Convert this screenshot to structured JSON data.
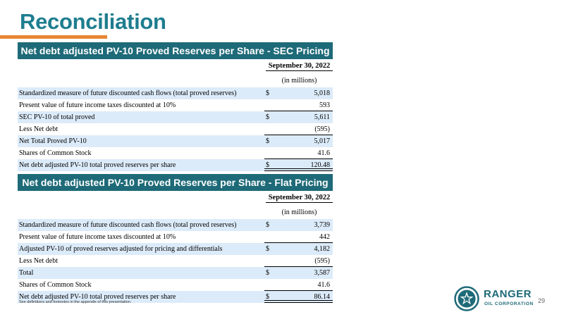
{
  "title": "Reconciliation",
  "sections": [
    {
      "header": "Net debt adjusted PV-10 Proved Reserves per Share - SEC Pricing",
      "date_label": "September 30, 2022",
      "units_label": "(in millions)",
      "rows": [
        {
          "label": "Standardized measure of future discounted cash flows (total proved reserves)",
          "dollar": "$",
          "value": "5,018"
        },
        {
          "label": "Present value of future income taxes discounted at 10%",
          "dollar": "",
          "value": "593"
        },
        {
          "label": "SEC PV-10 of total proved",
          "dollar": "$",
          "value": "5,611"
        },
        {
          "label": "Less Net debt",
          "dollar": "",
          "value": "(595)"
        },
        {
          "label": "Net Total Proved PV-10",
          "dollar": "$",
          "value": "5,017"
        },
        {
          "label": "Shares of Common Stock",
          "dollar": "",
          "value": "41.6"
        },
        {
          "label": "Net debt adjusted PV-10 total proved reserves per share",
          "dollar": "$",
          "value": "120.48"
        }
      ]
    },
    {
      "header": "Net debt adjusted PV-10 Proved Reserves per Share - Flat Pricing",
      "date_label": "September 30, 2022",
      "units_label": "(in millions)",
      "rows": [
        {
          "label": "Standardized measure of future discounted cash flows (total proved reserves)",
          "dollar": "$",
          "value": "3,739"
        },
        {
          "label": "Present value of future income taxes discounted at 10%",
          "dollar": "",
          "value": "442"
        },
        {
          "label": "Adjusted PV-10 of proved reserves adjusted for pricing and differentials",
          "dollar": "$",
          "value": "4,182"
        },
        {
          "label": "Less Net debt",
          "dollar": "",
          "value": "(595)"
        },
        {
          "label": "Total",
          "dollar": "$",
          "value": "3,587"
        },
        {
          "label": "Shares of Common Stock",
          "dollar": "",
          "value": "41.6"
        },
        {
          "label": "Net debt adjusted PV-10 total proved reserves per share",
          "dollar": "$",
          "value": "86.14"
        }
      ]
    }
  ],
  "footnote": "See definitions and footnotes in the appendix of this presentation.",
  "logo": {
    "name": "RANGER",
    "sub": "OIL CORPORATION",
    "icon": "ranger-star-logo-icon"
  },
  "page_number": "29",
  "colors": {
    "title": "#1e7d8f",
    "accent": "#e88634",
    "header_bg": "#1e6a78",
    "row_shade": "#dcebf9"
  }
}
